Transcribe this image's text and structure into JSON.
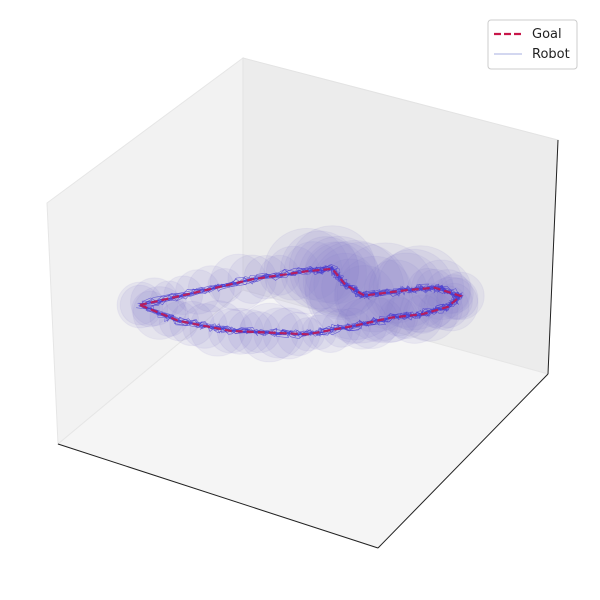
{
  "chart_data": {
    "type": "line",
    "projection": "3d",
    "title": "",
    "xlabel": "",
    "ylabel": "",
    "zlabel": "",
    "ticks_visible": false,
    "grid": false,
    "legend_position": "top-right",
    "legend": [
      {
        "name": "Goal",
        "style": "dashed",
        "color": "#c8174a"
      },
      {
        "name": "Robot",
        "style": "solid",
        "color": "#b9bfe6"
      }
    ],
    "colors": {
      "goal": "#c8174a",
      "robot": "#4a3fd0",
      "tube": "#8a80d0",
      "pane_left": "#f2f2f2",
      "pane_back": "#ececec",
      "pane_floor": "#f4f4f4"
    },
    "series": [
      {
        "name": "Goal",
        "points": [
          [
            0.0,
            0.0,
            0.5
          ],
          [
            0.18,
            0.17,
            0.54
          ],
          [
            0.35,
            0.33,
            0.58
          ],
          [
            0.52,
            0.48,
            0.6
          ],
          [
            0.6,
            0.56,
            0.6
          ],
          [
            0.64,
            0.6,
            0.52
          ],
          [
            0.7,
            0.66,
            0.46
          ],
          [
            0.83,
            0.78,
            0.47
          ],
          [
            0.92,
            0.87,
            0.47
          ],
          [
            1.0,
            0.95,
            0.42
          ],
          [
            0.96,
            0.88,
            0.38
          ],
          [
            0.88,
            0.78,
            0.36
          ],
          [
            0.78,
            0.66,
            0.36
          ],
          [
            0.66,
            0.52,
            0.34
          ],
          [
            0.52,
            0.38,
            0.32
          ],
          [
            0.4,
            0.28,
            0.34
          ],
          [
            0.28,
            0.18,
            0.36
          ],
          [
            0.12,
            0.06,
            0.42
          ],
          [
            0.0,
            0.0,
            0.5
          ]
        ]
      }
    ]
  }
}
